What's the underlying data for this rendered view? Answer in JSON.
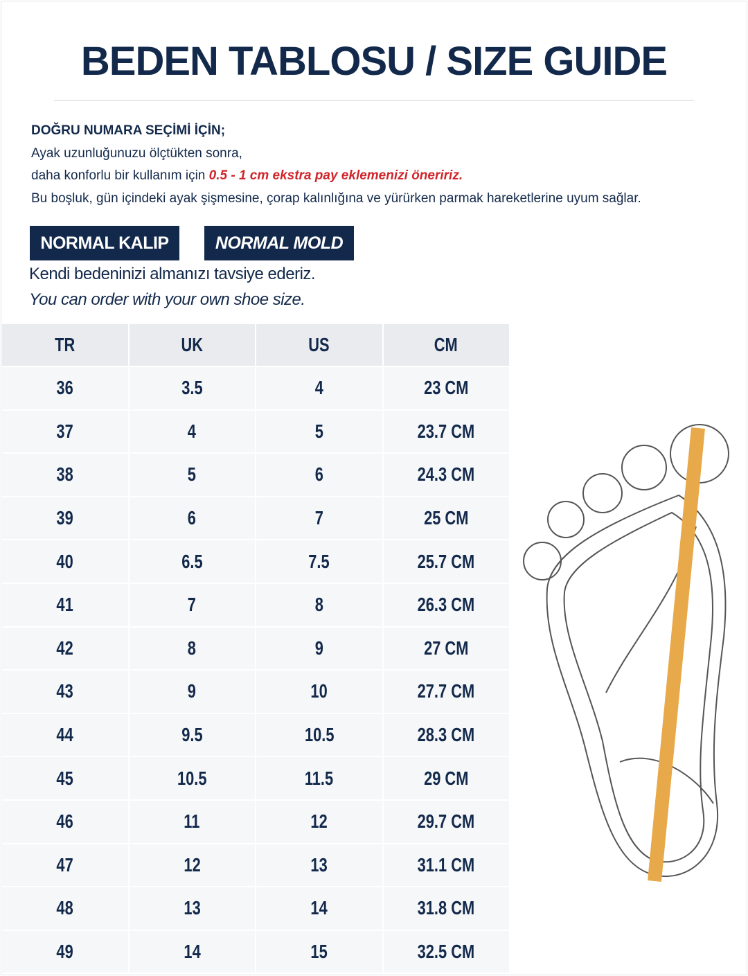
{
  "header": {
    "title": "BEDEN TABLOSU / SIZE GUIDE"
  },
  "intro": {
    "heading": "DOĞRU NUMARA SEÇİMİ İÇİN;",
    "line1": "Ayak uzunluğunuzu ölçtükten sonra,",
    "line2_prefix": "daha konforlu bir kullanım için",
    "line2_highlight": "0.5 - 1 cm ekstra pay eklemenizi öneririz.",
    "line3": "Bu boşluk, gün içindeki ayak şişmesine, çorap kalınlığına ve yürürken parmak hareketlerine uyum sağlar."
  },
  "badges": [
    "NORMAL KALIP",
    "NORMAL MOLD"
  ],
  "note": {
    "line1": "Kendi bedeninizi almanızı tavsiye ederiz.",
    "line2": "You can order with your own shoe size."
  },
  "table": {
    "header": [
      "TR",
      "UK",
      "US",
      "CM"
    ],
    "rows": [
      [
        "36",
        "3.5",
        "4",
        "23 CM"
      ],
      [
        "37",
        "4",
        "5",
        "23.7 CM"
      ],
      [
        "38",
        "5",
        "6",
        "24.3 CM"
      ],
      [
        "39",
        "6",
        "7",
        "25 CM"
      ],
      [
        "40",
        "6.5",
        "7.5",
        "25.7 CM"
      ],
      [
        "41",
        "7",
        "8",
        "26.3 CM"
      ],
      [
        "42",
        "8",
        "9",
        "27 CM"
      ],
      [
        "43",
        "9",
        "10",
        "27.7 CM"
      ],
      [
        "44",
        "9.5",
        "10.5",
        "28.3 CM"
      ],
      [
        "45",
        "10.5",
        "11.5",
        "29 CM"
      ],
      [
        "46",
        "11",
        "12",
        "29.7 CM"
      ],
      [
        "47",
        "12",
        "13",
        "31.1 CM"
      ],
      [
        "48",
        "13",
        "14",
        "31.8 CM"
      ],
      [
        "49",
        "14",
        "15",
        "32.5 CM"
      ]
    ]
  }
}
